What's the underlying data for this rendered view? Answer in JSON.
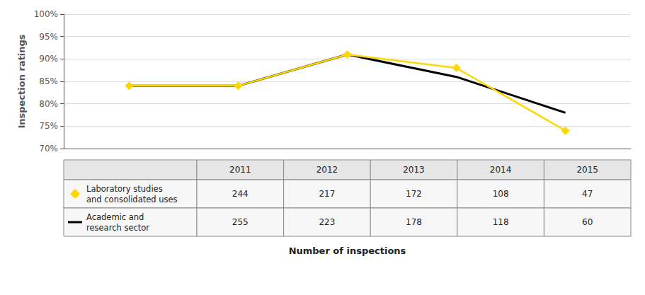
{
  "chart_data": {
    "type": "line",
    "x": [
      2011,
      2012,
      2013,
      2014,
      2015
    ],
    "xlim": [
      2010.4,
      2015.6
    ],
    "xticks": [],
    "ylim": [
      0.7,
      1.0
    ],
    "yticks": [
      {
        "value": 0.7,
        "label": "70%"
      },
      {
        "value": 0.75,
        "label": "75%"
      },
      {
        "value": 0.8,
        "label": "80%"
      },
      {
        "value": 0.85,
        "label": "85%"
      },
      {
        "value": 0.9,
        "label": "90%"
      },
      {
        "value": 0.95,
        "label": "95%"
      },
      {
        "value": 1.0,
        "label": "100%"
      }
    ],
    "ylabel": "Inspection ratings",
    "xlabel": "Number of inspections",
    "grid": true,
    "tick_labels": "y",
    "series": [
      {
        "name": "Laboratory studies\nand consolidated uses",
        "color": "#FFD700",
        "marker": "diamond",
        "values": [
          0.84,
          0.84,
          0.91,
          0.88,
          0.74
        ],
        "counts": [
          244,
          217,
          172,
          108,
          47
        ]
      },
      {
        "name": "Academic and\nresearch sector",
        "color": "#000000",
        "marker": "none",
        "values": [
          0.84,
          0.84,
          0.91,
          0.86,
          0.78
        ],
        "counts": [
          255,
          223,
          178,
          118,
          60
        ]
      }
    ]
  }
}
